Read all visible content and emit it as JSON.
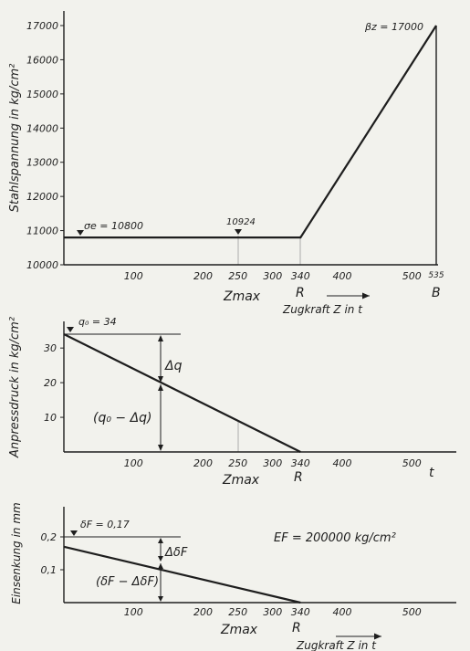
{
  "chart_data": [
    {
      "type": "line",
      "ylabel": "Stahlspannung in kg/cm²",
      "xlabel": "Zugkraft Z in t",
      "xlim": [
        0,
        560
      ],
      "ylim": [
        10000,
        17000
      ],
      "x_ticks": [
        "100",
        "200",
        "250",
        "300",
        "340",
        "400",
        "500",
        "535"
      ],
      "y_ticks": [
        "10000",
        "11000",
        "12000",
        "13000",
        "14000",
        "15000",
        "16000",
        "17000"
      ],
      "series": [
        {
          "x": [
            0,
            340,
            535
          ],
          "y": [
            10800,
            10800,
            17000
          ]
        }
      ],
      "annotations": {
        "sigma_e": "σe = 10800",
        "value_250": "10924",
        "beta_z": "βz = 17000",
        "zmax": "Zmax",
        "r": "R",
        "b": "B"
      }
    },
    {
      "type": "line",
      "ylabel": "Anpressdruck in kg/cm²",
      "x_unit": "t",
      "xlim": [
        0,
        560
      ],
      "ylim": [
        0,
        34
      ],
      "x_ticks": [
        "100",
        "200",
        "250",
        "300",
        "340",
        "400",
        "500"
      ],
      "y_ticks": [
        "10",
        "20",
        "30"
      ],
      "series": [
        {
          "x": [
            0,
            340
          ],
          "y": [
            34,
            0
          ]
        }
      ],
      "annotations": {
        "q0": "q₀ = 34",
        "dq": "Δq",
        "q0_minus_dq": "(q₀ − Δq)",
        "zmax": "Zmax",
        "r": "R"
      }
    },
    {
      "type": "line",
      "ylabel": "Einsenkung in mm",
      "xlabel": "Zugkraft Z in t",
      "xlim": [
        0,
        560
      ],
      "ylim": [
        0,
        0.2
      ],
      "x_ticks": [
        "100",
        "200",
        "250",
        "300",
        "340",
        "400",
        "500"
      ],
      "y_ticks": [
        "0,1",
        "0,2"
      ],
      "series": [
        {
          "x": [
            0,
            340
          ],
          "y": [
            0.17,
            0
          ]
        }
      ],
      "annotations": {
        "delta_f": "δF = 0,17",
        "d_delta": "ΔδF",
        "delta_minus": "(δF − ΔδF)",
        "ef": "EF = 200000 kg/cm²",
        "zmax": "Zmax",
        "r": "R"
      }
    }
  ]
}
